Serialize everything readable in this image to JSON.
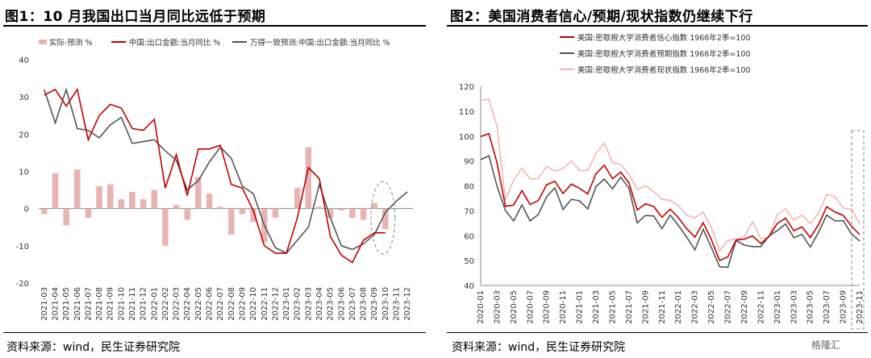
{
  "panels": {
    "left": {
      "title": "图1：10 月我国出口当月同比远低于预期",
      "source": "资料来源：wind，民生证券研究院"
    },
    "right": {
      "title": "图2：美国消费者信心/预期/现状指数仍继续下行",
      "source": "资料来源：wind，民生证券研究院"
    }
  },
  "watermark": "格隆汇",
  "chart_data": [
    {
      "type": "bar+line",
      "title": "图1：10 月我国出口当月同比远低于预期",
      "x": [
        "2021-03",
        "2021-04",
        "2021-05",
        "2021-06",
        "2021-07",
        "2021-08",
        "2021-09",
        "2021-10",
        "2021-11",
        "2021-12",
        "2022-01",
        "2022-02",
        "2022-03",
        "2022-04",
        "2022-05",
        "2022-06",
        "2022-07",
        "2022-08",
        "2022-09",
        "2022-10",
        "2022-11",
        "2022-12",
        "2023-01",
        "2023-02",
        "2023-03",
        "2023-04",
        "2023-05",
        "2023-06",
        "2023-07",
        "2023-08",
        "2023-09",
        "2023-10",
        "2023-11",
        "2023-12"
      ],
      "ylim": [
        -20,
        40
      ],
      "yticks": [
        -20,
        -10,
        0,
        10,
        20,
        30,
        40
      ],
      "series": [
        {
          "name": "实际-预测 %",
          "kind": "bar",
          "color": "#e8b3b3",
          "values": [
            -1.5,
            9.5,
            -4.5,
            10.5,
            -2.5,
            6,
            6.5,
            2.5,
            4.5,
            2.5,
            5,
            -10,
            1,
            -3,
            8.5,
            4,
            0.5,
            -7,
            -1.5,
            -3.5,
            -9,
            -2.5,
            null,
            5.5,
            16.5,
            0.5,
            -2.5,
            -0.5,
            -2.5,
            -3,
            1.5,
            -5.5,
            null,
            null
          ]
        },
        {
          "name": "中国:出口金额:当月同比 %",
          "kind": "line",
          "color": "#c00000",
          "values": [
            30.5,
            32,
            27.5,
            32,
            18.5,
            25,
            28,
            27,
            21.5,
            21,
            24,
            5.5,
            14.5,
            3.5,
            16,
            16,
            17,
            6.5,
            5.5,
            -0.5,
            -10,
            -12,
            -12,
            -2.5,
            11,
            8,
            -7.5,
            -12.5,
            -14.5,
            -8.5,
            -6.5,
            -6.5,
            null,
            null
          ]
        },
        {
          "name": "万得一致预测:中国:出口金额:当月同比 %",
          "kind": "line",
          "color": "#555555",
          "values": [
            32,
            23,
            32,
            21.5,
            21,
            19,
            22.5,
            24.5,
            17.5,
            18,
            18.5,
            15.5,
            13,
            5,
            7.5,
            12.5,
            16.5,
            13.5,
            6,
            4,
            -4.5,
            -10.5,
            -12,
            -8.5,
            -5,
            6.5,
            -2.5,
            -10,
            -11,
            -9.5,
            -7,
            -1,
            2,
            4.5
          ]
        }
      ],
      "annotations": [
        "dashed ellipse around 2023-09 to 2023-11"
      ]
    },
    {
      "type": "line",
      "title": "图2：美国消费者信心/预期/现状指数仍继续下行",
      "x": [
        "2020-01",
        "2020-02",
        "2020-03",
        "2020-04",
        "2020-05",
        "2020-06",
        "2020-07",
        "2020-08",
        "2020-09",
        "2020-10",
        "2020-11",
        "2020-12",
        "2021-01",
        "2021-02",
        "2021-03",
        "2021-04",
        "2021-05",
        "2021-06",
        "2021-07",
        "2021-08",
        "2021-09",
        "2021-10",
        "2021-11",
        "2021-12",
        "2022-01",
        "2022-02",
        "2022-03",
        "2022-04",
        "2022-05",
        "2022-06",
        "2022-07",
        "2022-08",
        "2022-09",
        "2022-10",
        "2022-11",
        "2022-12",
        "2023-01",
        "2023-02",
        "2023-03",
        "2023-04",
        "2023-05",
        "2023-06",
        "2023-07",
        "2023-08",
        "2023-09",
        "2023-10",
        "2023-11"
      ],
      "xticks": [
        "2020-01",
        "2020-03",
        "2020-05",
        "2020-07",
        "2020-09",
        "2020-11",
        "2021-01",
        "2021-03",
        "2021-05",
        "2021-07",
        "2021-09",
        "2021-11",
        "2022-01",
        "2022-03",
        "2022-05",
        "2022-07",
        "2022-09",
        "2022-11",
        "2023-01",
        "2023-03",
        "2023-05",
        "2023-07",
        "2023-09",
        "2023-11"
      ],
      "ylim": [
        40,
        120
      ],
      "yticks": [
        40,
        50,
        60,
        70,
        80,
        90,
        100,
        110,
        120
      ],
      "series": [
        {
          "name": "美国:密歇根大学消费者信心指数 1966年2季=100",
          "color": "#c00000",
          "values": [
            99.8,
            101,
            89.1,
            71.8,
            72.3,
            78.1,
            72.5,
            74.1,
            80.4,
            81.8,
            76.9,
            80.7,
            79,
            76.8,
            84.9,
            88.3,
            82.9,
            85.5,
            81.2,
            70.3,
            72.8,
            71.7,
            67.4,
            70.6,
            67.2,
            62.8,
            59.4,
            65.2,
            58.4,
            50,
            51.5,
            58.2,
            58.6,
            59.9,
            56.8,
            59.7,
            64.9,
            67,
            62,
            63.5,
            59.2,
            64.4,
            71.6,
            69.5,
            68.1,
            63.8,
            60.4
          ]
        },
        {
          "name": "美国:密歇根大学消费者预期指数 1966年2季=100",
          "color": "#555555",
          "values": [
            90.5,
            92.1,
            79.7,
            70.1,
            65.9,
            72.3,
            65.9,
            68.5,
            75.6,
            79.2,
            70.5,
            74.6,
            74,
            70.7,
            79.7,
            82.7,
            78.8,
            83.5,
            79,
            65.1,
            68.1,
            67.9,
            62.8,
            68.3,
            64.1,
            59.4,
            54.3,
            62.5,
            55.2,
            47.5,
            47.3,
            58,
            56.2,
            55.6,
            55.6,
            59.9,
            62,
            64.7,
            59.2,
            60.5,
            55.4,
            61.3,
            68.3,
            65.9,
            66,
            60.7,
            57.8
          ]
        },
        {
          "name": "美国:密歇根大学消费者现状指数 1966年2季=100",
          "color": "#efb7b7",
          "values": [
            114.4,
            114.8,
            103.7,
            74.3,
            82.3,
            87.1,
            82.8,
            82.9,
            87.8,
            85.9,
            87,
            90,
            86.2,
            86.2,
            93,
            97.2,
            89.4,
            88.6,
            84.5,
            78.5,
            80.1,
            77.7,
            74.6,
            74.2,
            72,
            68.2,
            67.2,
            69.4,
            63.3,
            53.8,
            58.1,
            58.6,
            59.7,
            65.6,
            58.8,
            59.4,
            68.4,
            70.7,
            66.3,
            68.2,
            64.9,
            69,
            76.5,
            75.7,
            71.1,
            70.6,
            64.7
          ]
        }
      ],
      "annotations": [
        "dashed box around 2023-11"
      ]
    }
  ]
}
